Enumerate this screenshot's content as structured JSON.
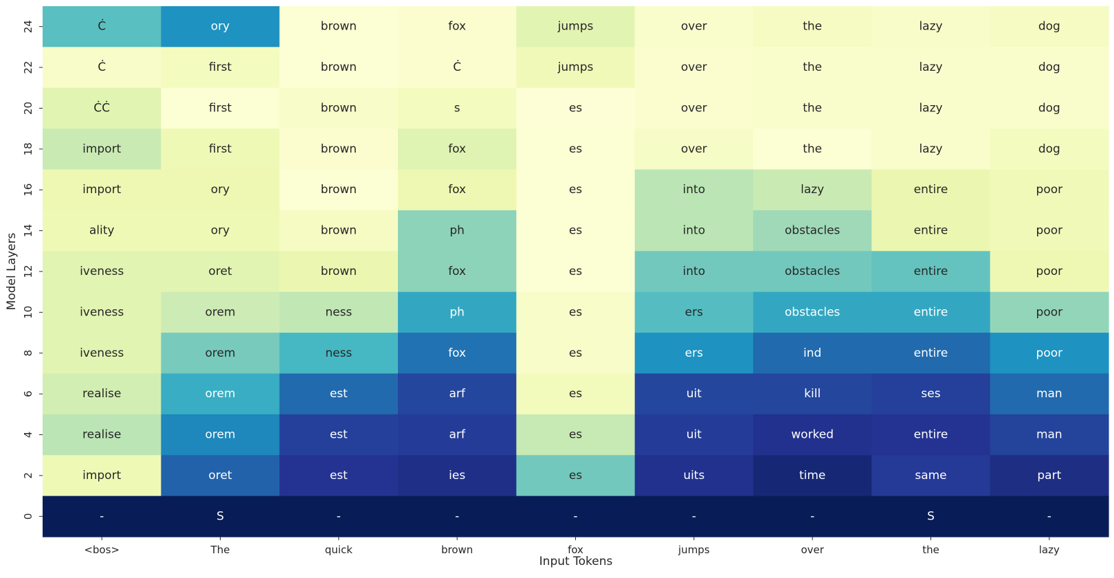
{
  "chart_data": {
    "type": "heatmap",
    "title": "",
    "xlabel": "Input Tokens",
    "ylabel": "Model Layers",
    "x_tick_labels": [
      "<bos>",
      "The",
      "quick",
      "brown",
      "fox",
      "jumps",
      "over",
      "the",
      "lazy"
    ],
    "y_tick_labels": [
      "24",
      "22",
      "20",
      "18",
      "16",
      "14",
      "12",
      "10",
      "8",
      "6",
      "4",
      "2",
      "0"
    ],
    "colormap": "YlGnBu",
    "grid": false,
    "legend": "none",
    "cell_tokens": [
      [
        "Ċ",
        "ory",
        "brown",
        "fox",
        "jumps",
        "over",
        "the",
        "lazy",
        "dog"
      ],
      [
        "Ċ",
        "first",
        "brown",
        "Ċ",
        "jumps",
        "over",
        "the",
        "lazy",
        "dog"
      ],
      [
        "ĊĊ",
        "first",
        "brown",
        "s",
        "es",
        "over",
        "the",
        "lazy",
        "dog"
      ],
      [
        "import",
        "first",
        "brown",
        "fox",
        "es",
        "over",
        "the",
        "lazy",
        "dog"
      ],
      [
        "import",
        "ory",
        "brown",
        "fox",
        "es",
        "into",
        "lazy",
        "entire",
        "poor"
      ],
      [
        "ality",
        "ory",
        "brown",
        "ph",
        "es",
        "into",
        "obstacles",
        "entire",
        "poor"
      ],
      [
        "iveness",
        "oret",
        "brown",
        "fox",
        "es",
        "into",
        "obstacles",
        "entire",
        "poor"
      ],
      [
        "iveness",
        "orem",
        "ness",
        "ph",
        "es",
        "ers",
        "obstacles",
        "entire",
        "poor"
      ],
      [
        "iveness",
        "orem",
        "ness",
        "fox",
        "es",
        "ers",
        "ind",
        "entire",
        "poor"
      ],
      [
        "realise",
        "orem",
        "est",
        "arf",
        "es",
        "uit",
        "kill",
        "ses",
        "man"
      ],
      [
        "realise",
        "orem",
        "est",
        "arf",
        "es",
        "uit",
        "worked",
        "entire",
        "man"
      ],
      [
        "import",
        "oret",
        "est",
        "ies",
        "es",
        "uits",
        "time",
        "same",
        "part"
      ],
      [
        "-",
        "S",
        "-",
        "-",
        "-",
        "-",
        "-",
        "S",
        "-"
      ]
    ],
    "cell_values": [
      [
        0.45,
        0.62,
        0.02,
        0.03,
        0.16,
        0.04,
        0.07,
        0.05,
        0.07
      ],
      [
        0.05,
        0.08,
        0.02,
        0.03,
        0.1,
        0.03,
        0.04,
        0.04,
        0.04
      ],
      [
        0.16,
        0.02,
        0.05,
        0.08,
        0.01,
        0.03,
        0.04,
        0.04,
        0.04
      ],
      [
        0.24,
        0.11,
        0.03,
        0.17,
        0.02,
        0.06,
        0.02,
        0.04,
        0.08
      ],
      [
        0.12,
        0.12,
        0.02,
        0.12,
        0.02,
        0.27,
        0.24,
        0.13,
        0.1
      ],
      [
        0.11,
        0.11,
        0.07,
        0.35,
        0.02,
        0.27,
        0.32,
        0.13,
        0.1
      ],
      [
        0.16,
        0.16,
        0.13,
        0.35,
        0.02,
        0.4,
        0.4,
        0.43,
        0.12
      ],
      [
        0.16,
        0.23,
        0.26,
        0.55,
        0.05,
        0.46,
        0.55,
        0.55,
        0.34
      ],
      [
        0.16,
        0.39,
        0.49,
        0.7,
        0.05,
        0.62,
        0.72,
        0.72,
        0.62
      ],
      [
        0.21,
        0.53,
        0.72,
        0.82,
        0.09,
        0.82,
        0.82,
        0.84,
        0.72
      ],
      [
        0.27,
        0.65,
        0.84,
        0.85,
        0.25,
        0.85,
        0.89,
        0.88,
        0.83
      ],
      [
        0.11,
        0.74,
        0.88,
        0.9,
        0.4,
        0.89,
        0.94,
        0.86,
        0.91
      ],
      [
        1.0,
        1.0,
        1.0,
        1.0,
        1.0,
        1.0,
        1.0,
        1.0,
        1.0
      ]
    ]
  }
}
